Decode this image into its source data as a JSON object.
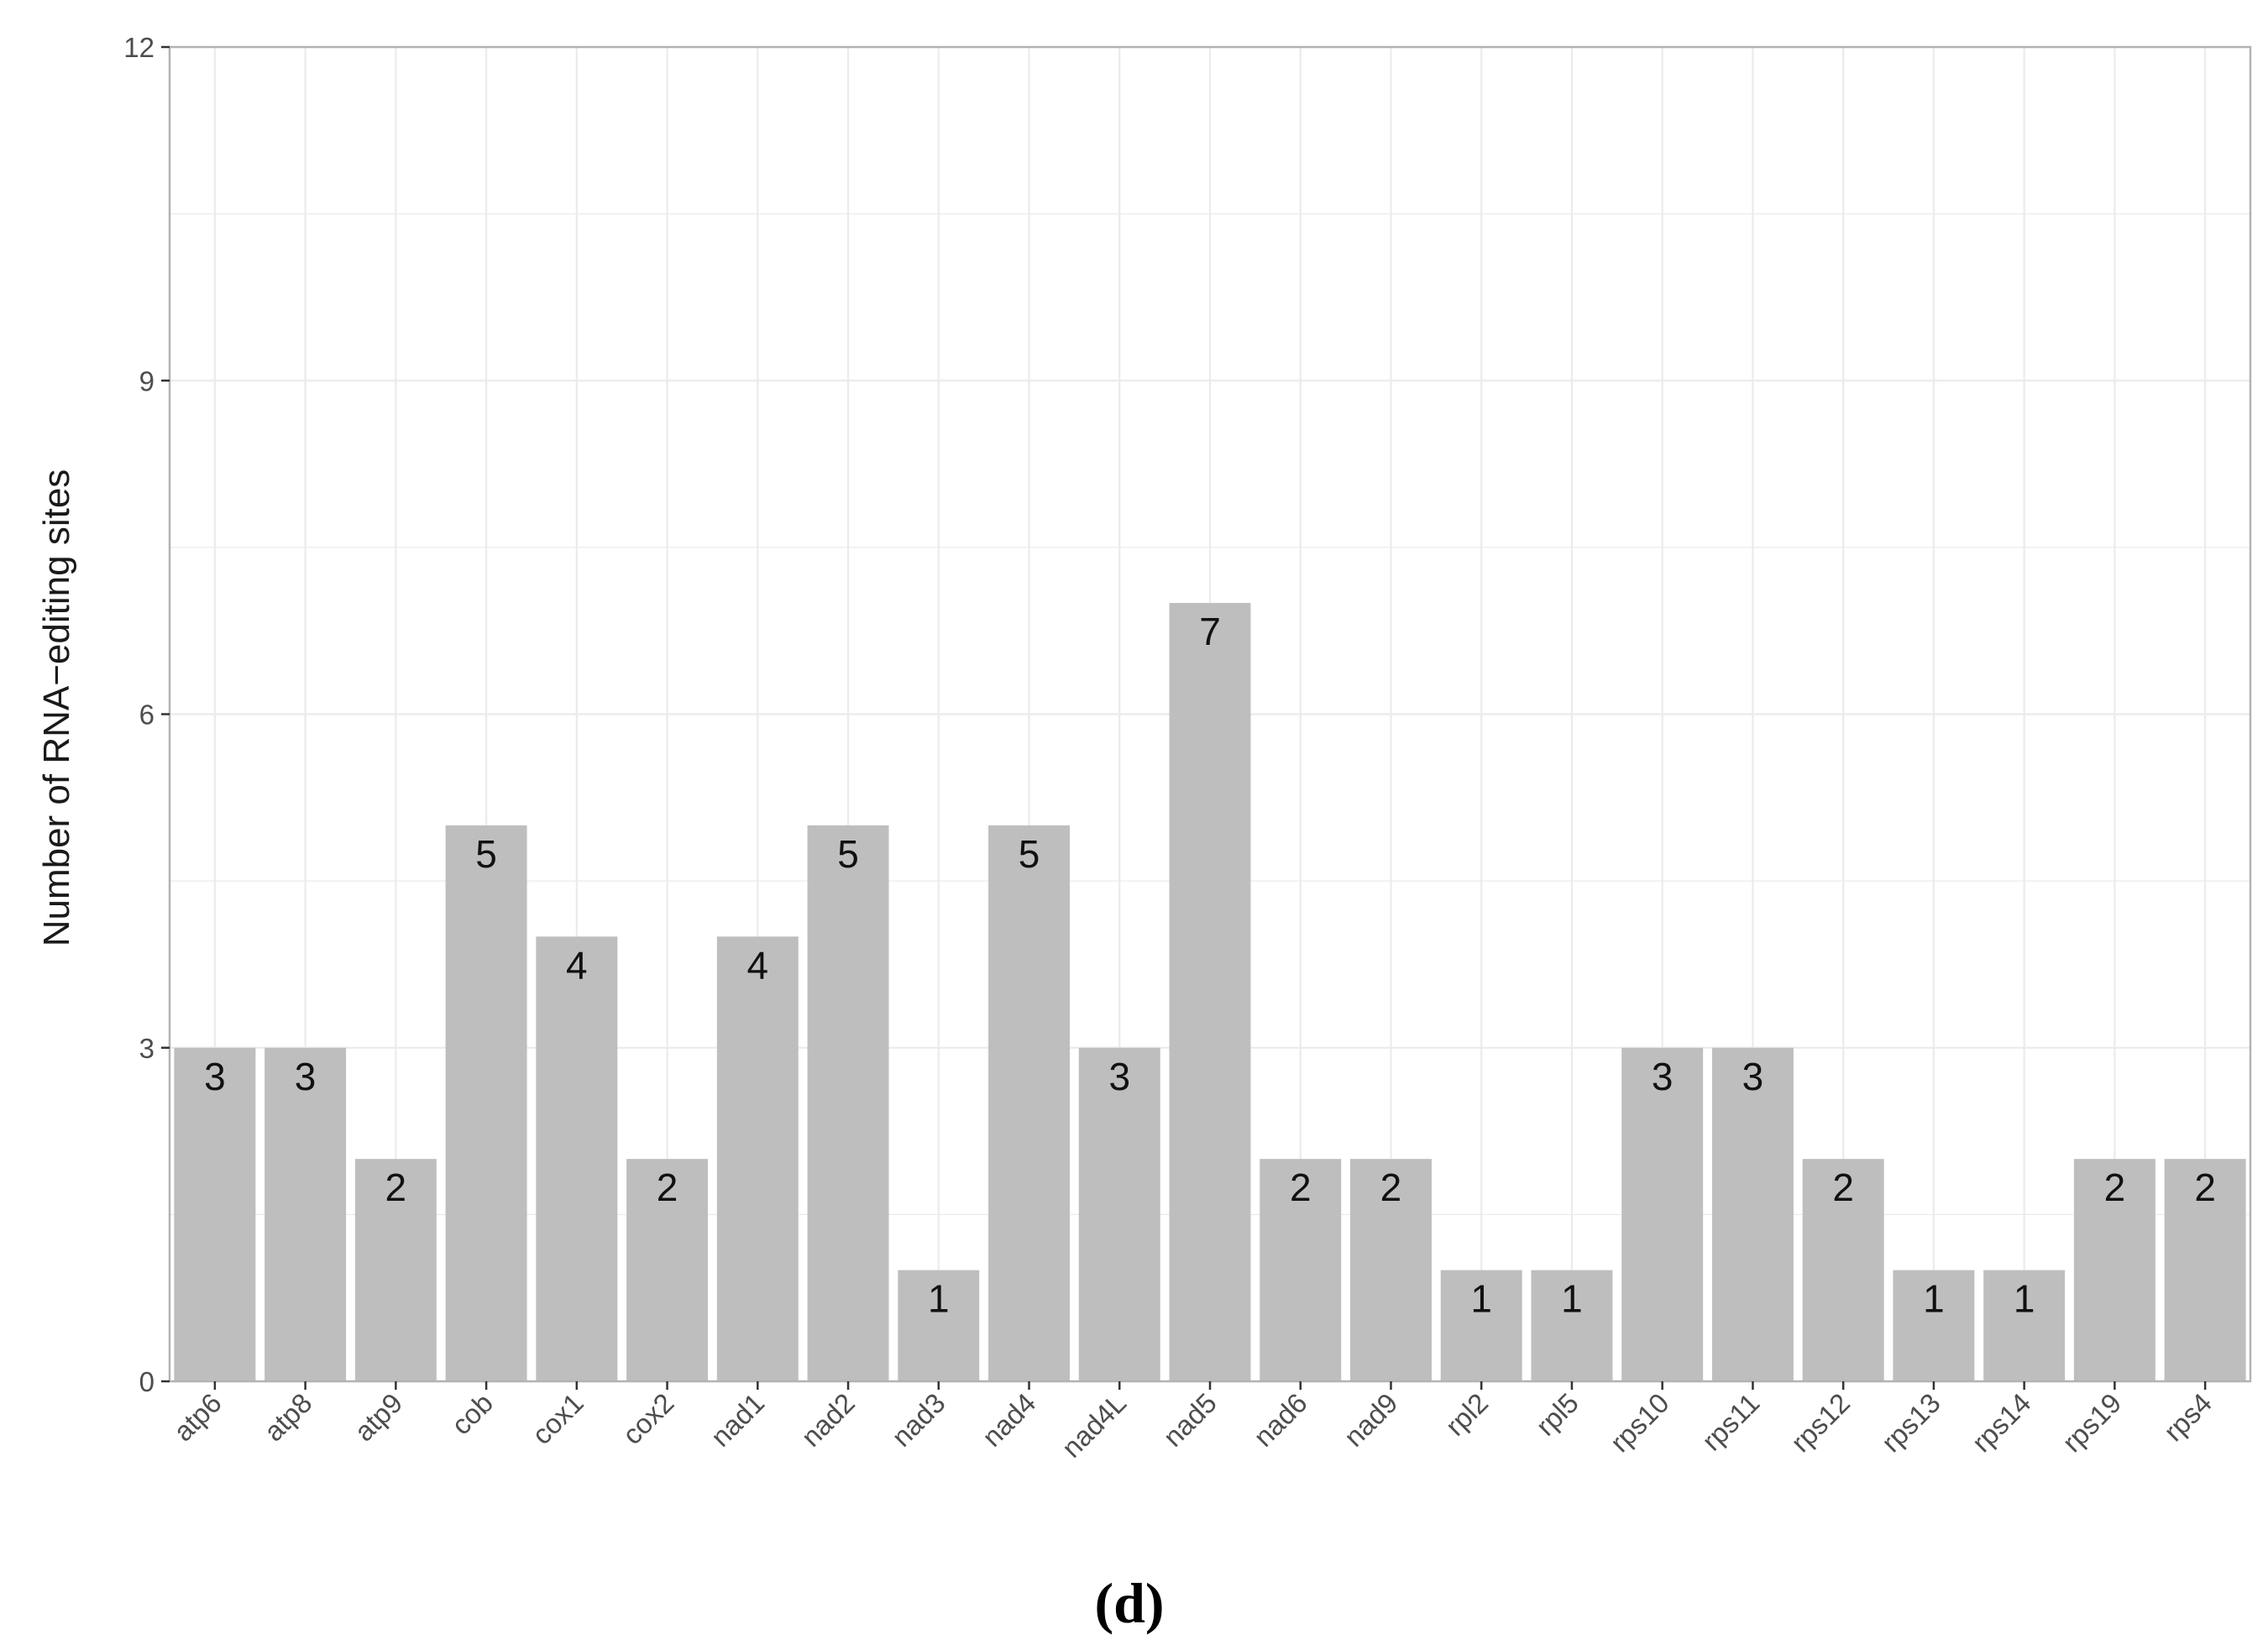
{
  "chart_data": {
    "type": "bar",
    "categories": [
      "atp6",
      "atp8",
      "atp9",
      "cob",
      "cox1",
      "cox2",
      "nad1",
      "nad2",
      "nad3",
      "nad4",
      "nad4L",
      "nad5",
      "nad6",
      "nad9",
      "rpl2",
      "rpl5",
      "rps10",
      "rps11",
      "rps12",
      "rps13",
      "rps14",
      "rps19",
      "rps4"
    ],
    "values": [
      3,
      3,
      2,
      5,
      4,
      2,
      4,
      5,
      1,
      5,
      3,
      7,
      2,
      2,
      1,
      1,
      3,
      3,
      2,
      1,
      1,
      2,
      2
    ],
    "title": "",
    "xlabel": "",
    "ylabel": "Number of RNA−editing sites",
    "ylim": [
      0,
      12
    ],
    "yticks": [
      0,
      3,
      6,
      9,
      12
    ],
    "grid": true,
    "data_labels": true,
    "bar_color": "#bebebe",
    "grid_color": "#ebebeb"
  },
  "caption": "(d)"
}
